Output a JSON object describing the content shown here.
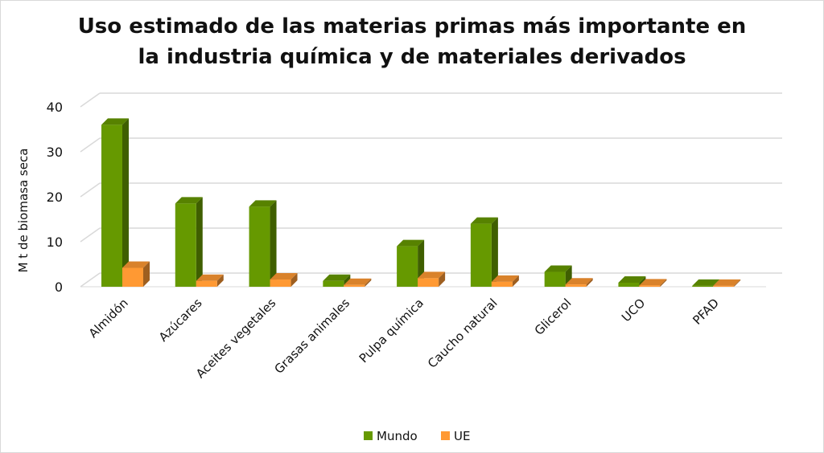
{
  "chart_data": {
    "type": "bar",
    "title_line1": "Uso estimado de las materias primas más importante en",
    "title_line2": "la industria química y de materiales derivados",
    "ylabel": "M t de biomasa seca",
    "xlabel": "",
    "ylim": [
      0,
      40
    ],
    "yticks": [
      0,
      10,
      20,
      30,
      40
    ],
    "grid": true,
    "legend_position": "bottom",
    "categories": [
      "Almidón",
      "Azúcares",
      "Aceites vegetales",
      "Grasas animales",
      "Pulpa química",
      "Caucho natural",
      "Glicerol",
      "UCO",
      "PFAD"
    ],
    "series": [
      {
        "name": "Mundo",
        "color": "#669900",
        "values": [
          36,
          18.5,
          17.8,
          1.3,
          9,
          14,
          3.3,
          0.9,
          0.2
        ]
      },
      {
        "name": "UE",
        "color": "#FF9933",
        "values": [
          4.2,
          1.3,
          1.6,
          0.4,
          1.9,
          1.1,
          0.5,
          0.3,
          0.2
        ]
      }
    ]
  }
}
